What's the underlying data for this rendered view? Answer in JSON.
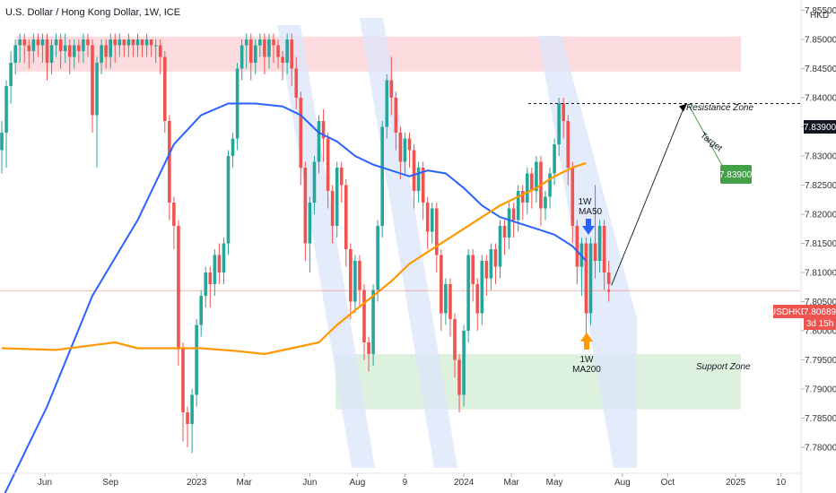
{
  "chart_data": {
    "type": "candlestick",
    "title": "U.S. Dollar / Hong Kong Dollar, 1W, ICE",
    "currency": "HKD",
    "ylim": [
      7.78,
      7.86
    ],
    "y_ticks": [
      "7.85500",
      "7.85000",
      "7.84500",
      "7.84000",
      "7.83500",
      "7.83000",
      "7.82500",
      "7.82000",
      "7.81500",
      "7.81000",
      "7.80500",
      "7.80000",
      "7.79500",
      "7.79000",
      "7.78500",
      "7.78000"
    ],
    "x_ticks": [
      "Jun",
      "Sep",
      "2023",
      "Mar",
      "Jun",
      "Aug",
      "9",
      "2024",
      "Mar",
      "May",
      "Aug",
      "Oct",
      "2025",
      "10"
    ],
    "price_label": {
      "symbol": "USDHKD",
      "value": "7.80689",
      "countdown": "3d 15h",
      "value_num": 7.80689
    },
    "target_label": {
      "value": "7.83900",
      "value_num": 7.839
    },
    "resistance_zone": {
      "label": "Resistance Zone",
      "low": 7.8445,
      "high": 7.8505
    },
    "support_zone": {
      "label": "Support Zone",
      "low": 7.7865,
      "high": 7.796
    },
    "target_line": {
      "value": 7.839
    },
    "annotations": {
      "ma50_line1": "1W",
      "ma50_line2": "MA50",
      "ma200_line1": "1W",
      "ma200_line2": "MA200",
      "target_text": "Target"
    },
    "series": [
      {
        "name": "1W MA50",
        "color": "#2962ff"
      },
      {
        "name": "1W MA200",
        "color": "#ff9800"
      }
    ],
    "colors": {
      "up": "#26a69a",
      "down": "#ef5350",
      "channel": "#dbe6fb",
      "resistance": "#fbd5d8",
      "support": "#d9efdb"
    },
    "candles": [
      [
        7.831,
        7.834,
        7.829,
        7.836,
        7.827
      ],
      [
        7.834,
        7.842,
        7.832,
        7.843,
        7.828
      ],
      [
        7.842,
        7.846,
        7.84,
        7.848,
        7.839
      ],
      [
        7.846,
        7.849,
        7.845,
        7.85,
        7.844
      ],
      [
        7.849,
        7.85,
        7.847,
        7.851,
        7.846
      ],
      [
        7.85,
        7.849,
        7.847,
        7.851,
        7.846
      ],
      [
        7.849,
        7.848,
        7.846,
        7.85,
        7.845
      ],
      [
        7.848,
        7.85,
        7.847,
        7.851,
        7.846
      ],
      [
        7.85,
        7.849,
        7.848,
        7.851,
        7.847
      ],
      [
        7.849,
        7.85,
        7.847,
        7.851,
        7.846
      ],
      [
        7.85,
        7.846,
        7.844,
        7.851,
        7.843
      ],
      [
        7.846,
        7.849,
        7.845,
        7.85,
        7.844
      ],
      [
        7.849,
        7.85,
        7.848,
        7.851,
        7.847
      ],
      [
        7.85,
        7.848,
        7.846,
        7.851,
        7.845
      ],
      [
        7.848,
        7.849,
        7.847,
        7.851,
        7.846
      ],
      [
        7.849,
        7.847,
        7.845,
        7.85,
        7.844
      ],
      [
        7.847,
        7.849,
        7.846,
        7.85,
        7.845
      ],
      [
        7.849,
        7.848,
        7.847,
        7.85,
        7.846
      ],
      [
        7.848,
        7.85,
        7.847,
        7.851,
        7.846
      ],
      [
        7.85,
        7.849,
        7.848,
        7.851,
        7.847
      ],
      [
        7.849,
        7.837,
        7.836,
        7.85,
        7.834
      ],
      [
        7.837,
        7.846,
        7.836,
        7.847,
        7.828
      ],
      [
        7.846,
        7.849,
        7.845,
        7.85,
        7.844
      ],
      [
        7.849,
        7.847,
        7.846,
        7.85,
        7.845
      ],
      [
        7.847,
        7.85,
        7.846,
        7.851,
        7.845
      ],
      [
        7.85,
        7.849,
        7.847,
        7.851,
        7.846
      ],
      [
        7.849,
        7.85,
        7.848,
        7.851,
        7.847
      ],
      [
        7.85,
        7.849,
        7.848,
        7.85,
        7.847
      ],
      [
        7.849,
        7.85,
        7.848,
        7.851,
        7.847
      ],
      [
        7.85,
        7.849,
        7.848,
        7.85,
        7.847
      ],
      [
        7.849,
        7.85,
        7.848,
        7.851,
        7.847
      ],
      [
        7.85,
        7.849,
        7.848,
        7.85,
        7.847
      ],
      [
        7.849,
        7.85,
        7.848,
        7.851,
        7.847
      ],
      [
        7.85,
        7.849,
        7.848,
        7.85,
        7.847
      ],
      [
        7.849,
        7.849,
        7.847,
        7.85,
        7.846
      ],
      [
        7.849,
        7.847,
        7.845,
        7.85,
        7.844
      ],
      [
        7.847,
        7.836,
        7.835,
        7.848,
        7.834
      ],
      [
        7.836,
        7.822,
        7.82,
        7.837,
        7.819
      ],
      [
        7.822,
        7.818,
        7.816,
        7.823,
        7.814
      ],
      [
        7.818,
        7.797,
        7.795,
        7.819,
        7.794
      ],
      [
        7.797,
        7.786,
        7.783,
        7.798,
        7.781
      ],
      [
        7.786,
        7.784,
        7.782,
        7.787,
        7.78
      ],
      [
        7.784,
        7.789,
        7.781,
        7.79,
        7.779
      ],
      [
        7.789,
        7.801,
        7.788,
        7.802,
        7.787
      ],
      [
        7.801,
        7.806,
        7.8,
        7.807,
        7.799
      ],
      [
        7.806,
        7.81,
        7.805,
        7.811,
        7.804
      ],
      [
        7.81,
        7.808,
        7.806,
        7.811,
        7.804
      ],
      [
        7.808,
        7.813,
        7.807,
        7.814,
        7.806
      ],
      [
        7.813,
        7.81,
        7.809,
        7.815,
        7.808
      ],
      [
        7.81,
        7.815,
        7.809,
        7.816,
        7.808
      ],
      [
        7.815,
        7.83,
        7.814,
        7.831,
        7.813
      ],
      [
        7.83,
        7.833,
        7.829,
        7.834,
        7.828
      ],
      [
        7.833,
        7.845,
        7.832,
        7.846,
        7.831
      ],
      [
        7.845,
        7.849,
        7.844,
        7.85,
        7.843
      ],
      [
        7.849,
        7.85,
        7.846,
        7.851,
        7.845
      ],
      [
        7.85,
        7.846,
        7.844,
        7.851,
        7.843
      ],
      [
        7.846,
        7.849,
        7.845,
        7.85,
        7.844
      ],
      [
        7.849,
        7.85,
        7.848,
        7.851,
        7.847
      ],
      [
        7.85,
        7.847,
        7.845,
        7.851,
        7.844
      ],
      [
        7.847,
        7.85,
        7.846,
        7.851,
        7.845
      ],
      [
        7.85,
        7.849,
        7.847,
        7.851,
        7.846
      ],
      [
        7.849,
        7.847,
        7.846,
        7.85,
        7.845
      ],
      [
        7.847,
        7.846,
        7.844,
        7.848,
        7.843
      ],
      [
        7.846,
        7.85,
        7.845,
        7.851,
        7.844
      ],
      [
        7.85,
        7.845,
        7.843,
        7.851,
        7.842
      ],
      [
        7.845,
        7.84,
        7.839,
        7.847,
        7.838
      ],
      [
        7.84,
        7.828,
        7.826,
        7.841,
        7.825
      ],
      [
        7.828,
        7.815,
        7.813,
        7.829,
        7.812
      ],
      [
        7.815,
        7.822,
        7.814,
        7.823,
        7.81
      ],
      [
        7.822,
        7.829,
        7.821,
        7.83,
        7.82
      ],
      [
        7.829,
        7.836,
        7.828,
        7.837,
        7.827
      ],
      [
        7.836,
        7.833,
        7.83,
        7.838,
        7.829
      ],
      [
        7.833,
        7.824,
        7.822,
        7.834,
        7.821
      ],
      [
        7.824,
        7.818,
        7.816,
        7.825,
        7.815
      ],
      [
        7.818,
        7.828,
        7.817,
        7.829,
        7.816
      ],
      [
        7.828,
        7.825,
        7.823,
        7.829,
        7.822
      ],
      [
        7.825,
        7.814,
        7.812,
        7.826,
        7.811
      ],
      [
        7.814,
        7.805,
        7.803,
        7.815,
        7.802
      ],
      [
        7.805,
        7.812,
        7.804,
        7.813,
        7.803
      ],
      [
        7.812,
        7.807,
        7.805,
        7.813,
        7.804
      ],
      [
        7.807,
        7.798,
        7.796,
        7.808,
        7.795
      ],
      [
        7.798,
        7.796,
        7.794,
        7.799,
        7.793
      ],
      [
        7.796,
        7.807,
        7.795,
        7.808,
        7.794
      ],
      [
        7.807,
        7.818,
        7.806,
        7.819,
        7.805
      ],
      [
        7.818,
        7.835,
        7.817,
        7.836,
        7.816
      ],
      [
        7.835,
        7.843,
        7.834,
        7.844,
        7.833
      ],
      [
        7.843,
        7.84,
        7.838,
        7.847,
        7.837
      ],
      [
        7.84,
        7.834,
        7.832,
        7.841,
        7.831
      ],
      [
        7.834,
        7.829,
        7.827,
        7.835,
        7.826
      ],
      [
        7.829,
        7.833,
        7.828,
        7.834,
        7.827
      ],
      [
        7.833,
        7.831,
        7.829,
        7.834,
        7.828
      ],
      [
        7.831,
        7.824,
        7.822,
        7.832,
        7.821
      ],
      [
        7.824,
        7.828,
        7.823,
        7.829,
        7.822
      ],
      [
        7.828,
        7.822,
        7.82,
        7.829,
        7.819
      ],
      [
        7.822,
        7.817,
        7.815,
        7.823,
        7.814
      ],
      [
        7.817,
        7.821,
        7.816,
        7.822,
        7.815
      ],
      [
        7.821,
        7.813,
        7.811,
        7.822,
        7.81
      ],
      [
        7.813,
        7.803,
        7.801,
        7.814,
        7.8
      ],
      [
        7.803,
        7.808,
        7.802,
        7.809,
        7.801
      ],
      [
        7.808,
        7.802,
        7.8,
        7.809,
        7.799
      ],
      [
        7.802,
        7.795,
        7.793,
        7.803,
        7.792
      ],
      [
        7.795,
        7.789,
        7.787,
        7.796,
        7.786
      ],
      [
        7.789,
        7.8,
        7.788,
        7.801,
        7.787
      ],
      [
        7.8,
        7.813,
        7.799,
        7.814,
        7.798
      ],
      [
        7.813,
        7.808,
        7.806,
        7.814,
        7.805
      ],
      [
        7.808,
        7.803,
        7.801,
        7.809,
        7.8
      ],
      [
        7.803,
        7.812,
        7.802,
        7.813,
        7.801
      ],
      [
        7.812,
        7.809,
        7.807,
        7.813,
        7.806
      ],
      [
        7.809,
        7.814,
        7.808,
        7.815,
        7.807
      ],
      [
        7.814,
        7.811,
        7.809,
        7.815,
        7.808
      ],
      [
        7.811,
        7.818,
        7.81,
        7.819,
        7.809
      ],
      [
        7.818,
        7.816,
        7.814,
        7.819,
        7.813
      ],
      [
        7.816,
        7.821,
        7.815,
        7.822,
        7.814
      ],
      [
        7.821,
        7.819,
        7.817,
        7.822,
        7.816
      ],
      [
        7.819,
        7.824,
        7.818,
        7.825,
        7.817
      ],
      [
        7.824,
        7.822,
        7.82,
        7.825,
        7.819
      ],
      [
        7.822,
        7.827,
        7.821,
        7.828,
        7.82
      ],
      [
        7.827,
        7.824,
        7.822,
        7.828,
        7.821
      ],
      [
        7.824,
        7.829,
        7.823,
        7.83,
        7.822
      ],
      [
        7.829,
        7.821,
        7.819,
        7.83,
        7.818
      ],
      [
        7.821,
        7.823,
        7.82,
        7.824,
        7.819
      ],
      [
        7.823,
        7.827,
        7.822,
        7.828,
        7.821
      ],
      [
        7.827,
        7.832,
        7.826,
        7.833,
        7.825
      ],
      [
        7.832,
        7.839,
        7.831,
        7.84,
        7.83
      ],
      [
        7.839,
        7.836,
        7.834,
        7.84,
        7.833
      ],
      [
        7.836,
        7.828,
        7.826,
        7.837,
        7.825
      ],
      [
        7.828,
        7.818,
        7.816,
        7.829,
        7.815
      ],
      [
        7.818,
        7.811,
        7.809,
        7.819,
        7.808
      ],
      [
        7.811,
        7.815,
        7.81,
        7.816,
        7.806
      ],
      [
        7.815,
        7.803,
        7.801,
        7.816,
        7.799
      ],
      [
        7.803,
        7.815,
        7.802,
        7.816,
        7.801
      ],
      [
        7.815,
        7.812,
        7.81,
        7.825,
        7.809
      ],
      [
        7.812,
        7.818,
        7.811,
        7.819,
        7.81
      ],
      [
        7.818,
        7.81,
        7.808,
        7.819,
        7.807
      ],
      [
        7.81,
        7.808,
        7.806,
        7.812,
        7.805
      ]
    ],
    "ma50": [
      [
        0,
        7.771
      ],
      [
        10,
        7.787
      ],
      [
        20,
        7.806
      ],
      [
        30,
        7.819
      ],
      [
        38,
        7.832
      ],
      [
        44,
        7.837
      ],
      [
        50,
        7.839
      ],
      [
        56,
        7.839
      ],
      [
        62,
        7.8385
      ],
      [
        66,
        7.837
      ],
      [
        70,
        7.834
      ],
      [
        74,
        7.8325
      ],
      [
        78,
        7.83
      ],
      [
        82,
        7.8285
      ],
      [
        86,
        7.8275
      ],
      [
        90,
        7.8265
      ],
      [
        94,
        7.8275
      ],
      [
        98,
        7.827
      ],
      [
        102,
        7.8245
      ],
      [
        106,
        7.8215
      ],
      [
        110,
        7.8195
      ],
      [
        114,
        7.8185
      ],
      [
        118,
        7.8175
      ],
      [
        122,
        7.8165
      ],
      [
        126,
        7.8145
      ],
      [
        129,
        7.812
      ]
    ],
    "ma200": [
      [
        0,
        7.797
      ],
      [
        12,
        7.7967
      ],
      [
        20,
        7.7975
      ],
      [
        25,
        7.798
      ],
      [
        30,
        7.797
      ],
      [
        36,
        7.797
      ],
      [
        44,
        7.797
      ],
      [
        52,
        7.7965
      ],
      [
        58,
        7.796
      ],
      [
        64,
        7.797
      ],
      [
        70,
        7.798
      ],
      [
        74,
        7.801
      ],
      [
        78,
        7.8035
      ],
      [
        82,
        7.806
      ],
      [
        86,
        7.8085
      ],
      [
        90,
        7.8115
      ],
      [
        94,
        7.8135
      ],
      [
        98,
        7.8155
      ],
      [
        102,
        7.8175
      ],
      [
        106,
        7.8195
      ],
      [
        110,
        7.8215
      ],
      [
        114,
        7.823
      ],
      [
        118,
        7.8245
      ],
      [
        122,
        7.8265
      ],
      [
        126,
        7.828
      ],
      [
        129,
        7.8288
      ]
    ]
  }
}
